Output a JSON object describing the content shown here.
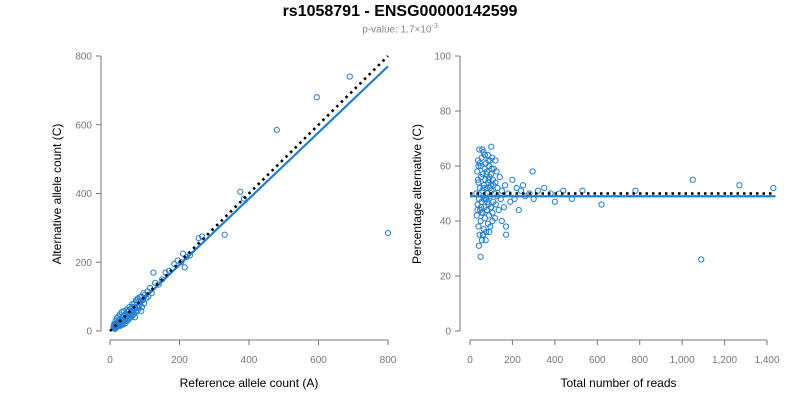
{
  "title": "rs1058791 - ENSG00000142599",
  "subtitle": {
    "prefix": "p-value: 1.7×10",
    "exponent": "-3"
  },
  "colors": {
    "points": "#1f7fd8",
    "fit_line": "#1f7fd8",
    "expected_line": "#000000",
    "axis": "#777777"
  },
  "chart_data": [
    {
      "type": "scatter",
      "xlabel": "Reference allele count (A)",
      "ylabel": "Alternative allele count (C)",
      "xlim": [
        0,
        800
      ],
      "ylim": [
        0,
        800
      ],
      "xticks": [
        0,
        200,
        400,
        600,
        800
      ],
      "xtick_labels": [
        "0",
        "200",
        "400",
        "600",
        "800"
      ],
      "yticks": [
        0,
        200,
        400,
        600,
        800
      ],
      "ytick_labels": [
        "0",
        "200",
        "400",
        "600",
        "800"
      ],
      "grid": false,
      "points": [
        [
          10,
          12
        ],
        [
          12,
          8
        ],
        [
          14,
          18
        ],
        [
          15,
          10
        ],
        [
          16,
          22
        ],
        [
          18,
          15
        ],
        [
          20,
          25
        ],
        [
          20,
          12
        ],
        [
          22,
          20
        ],
        [
          24,
          28
        ],
        [
          25,
          18
        ],
        [
          26,
          32
        ],
        [
          28,
          22
        ],
        [
          30,
          35
        ],
        [
          30,
          15
        ],
        [
          32,
          28
        ],
        [
          34,
          20
        ],
        [
          35,
          40
        ],
        [
          36,
          30
        ],
        [
          38,
          25
        ],
        [
          40,
          45
        ],
        [
          40,
          30
        ],
        [
          42,
          35
        ],
        [
          44,
          22
        ],
        [
          45,
          50
        ],
        [
          46,
          38
        ],
        [
          48,
          42
        ],
        [
          50,
          55
        ],
        [
          50,
          30
        ],
        [
          52,
          45
        ],
        [
          55,
          60
        ],
        [
          55,
          35
        ],
        [
          58,
          50
        ],
        [
          60,
          65
        ],
        [
          60,
          40
        ],
        [
          62,
          55
        ],
        [
          65,
          70
        ],
        [
          65,
          45
        ],
        [
          68,
          60
        ],
        [
          70,
          80
        ],
        [
          70,
          50
        ],
        [
          72,
          65
        ],
        [
          75,
          90
        ],
        [
          75,
          55
        ],
        [
          78,
          70
        ],
        [
          80,
          95
        ],
        [
          80,
          60
        ],
        [
          85,
          75
        ],
        [
          88,
          85
        ],
        [
          90,
          100
        ],
        [
          92,
          70
        ],
        [
          95,
          90
        ],
        [
          98,
          80
        ],
        [
          100,
          105
        ],
        [
          105,
          95
        ],
        [
          108,
          115
        ],
        [
          110,
          100
        ],
        [
          115,
          125
        ],
        [
          120,
          110
        ],
        [
          125,
          170
        ],
        [
          130,
          140
        ],
        [
          140,
          135
        ],
        [
          150,
          150
        ],
        [
          160,
          170
        ],
        [
          170,
          175
        ],
        [
          185,
          195
        ],
        [
          195,
          205
        ],
        [
          205,
          200
        ],
        [
          210,
          225
        ],
        [
          215,
          185
        ],
        [
          220,
          215
        ],
        [
          230,
          220
        ],
        [
          255,
          270
        ],
        [
          265,
          275
        ],
        [
          330,
          280
        ],
        [
          375,
          405
        ],
        [
          385,
          385
        ],
        [
          480,
          585
        ],
        [
          595,
          680
        ],
        [
          690,
          740
        ],
        [
          800,
          285
        ],
        [
          12,
          20
        ],
        [
          14,
          6
        ],
        [
          16,
          30
        ],
        [
          18,
          10
        ],
        [
          20,
          38
        ],
        [
          22,
          14
        ],
        [
          24,
          42
        ],
        [
          26,
          16
        ],
        [
          28,
          48
        ],
        [
          30,
          22
        ],
        [
          34,
          55
        ],
        [
          36,
          18
        ],
        [
          40,
          58
        ],
        [
          44,
          28
        ],
        [
          48,
          62
        ],
        [
          52,
          38
        ],
        [
          56,
          70
        ],
        [
          60,
          48
        ],
        [
          64,
          78
        ],
        [
          68,
          55
        ],
        [
          72,
          40
        ],
        [
          76,
          85
        ],
        [
          82,
          68
        ],
        [
          86,
          98
        ],
        [
          90,
          58
        ],
        [
          96,
          110
        ]
      ],
      "fit_line": [
        [
          0,
          0
        ],
        [
          800,
          770
        ]
      ],
      "expected_line": [
        [
          0,
          0
        ],
        [
          800,
          800
        ]
      ]
    },
    {
      "type": "scatter",
      "xlabel": "Total number of reads",
      "ylabel": "Percentage alternative (C)",
      "xlim": [
        0,
        1400
      ],
      "ylim": [
        0,
        100
      ],
      "xticks": [
        0,
        200,
        400,
        600,
        800,
        1000,
        1200,
        1400
      ],
      "xtick_labels": [
        "0",
        "200",
        "400",
        "600",
        "800",
        "1,000",
        "1,200",
        "1,400"
      ],
      "yticks": [
        0,
        20,
        40,
        60,
        80,
        100
      ],
      "ytick_labels": [
        "0",
        "20",
        "40",
        "60",
        "80",
        "100"
      ],
      "grid": false,
      "points": [
        [
          30,
          50
        ],
        [
          32,
          42
        ],
        [
          34,
          58
        ],
        [
          36,
          46
        ],
        [
          38,
          62
        ],
        [
          40,
          38
        ],
        [
          40,
          54
        ],
        [
          42,
          48
        ],
        [
          44,
          66
        ],
        [
          45,
          35
        ],
        [
          46,
          52
        ],
        [
          48,
          44
        ],
        [
          50,
          60
        ],
        [
          50,
          40
        ],
        [
          52,
          56
        ],
        [
          54,
          47
        ],
        [
          55,
          63
        ],
        [
          56,
          33
        ],
        [
          58,
          51
        ],
        [
          60,
          43
        ],
        [
          60,
          57
        ],
        [
          62,
          49
        ],
        [
          64,
          65
        ],
        [
          65,
          37
        ],
        [
          66,
          53
        ],
        [
          68,
          45
        ],
        [
          70,
          59
        ],
        [
          70,
          41
        ],
        [
          72,
          55
        ],
        [
          74,
          48
        ],
        [
          75,
          61
        ],
        [
          76,
          36
        ],
        [
          78,
          52
        ],
        [
          80,
          44
        ],
        [
          80,
          58
        ],
        [
          82,
          50
        ],
        [
          84,
          64
        ],
        [
          85,
          39
        ],
        [
          86,
          54
        ],
        [
          88,
          46
        ],
        [
          90,
          60
        ],
        [
          90,
          42
        ],
        [
          92,
          56
        ],
        [
          94,
          49
        ],
        [
          95,
          62
        ],
        [
          96,
          38
        ],
        [
          98,
          53
        ],
        [
          100,
          45
        ],
        [
          100,
          57
        ],
        [
          102,
          51
        ],
        [
          104,
          63
        ],
        [
          106,
          43
        ],
        [
          108,
          55
        ],
        [
          110,
          47
        ],
        [
          112,
          59
        ],
        [
          115,
          50
        ],
        [
          118,
          41
        ],
        [
          120,
          54
        ],
        [
          122,
          46
        ],
        [
          125,
          58
        ],
        [
          128,
          49
        ],
        [
          130,
          52
        ],
        [
          135,
          44
        ],
        [
          140,
          56
        ],
        [
          145,
          48
        ],
        [
          150,
          51
        ],
        [
          160,
          45
        ],
        [
          165,
          53
        ],
        [
          170,
          38
        ],
        [
          180,
          50
        ],
        [
          190,
          47
        ],
        [
          200,
          55
        ],
        [
          210,
          48
        ],
        [
          220,
          52
        ],
        [
          230,
          44
        ],
        [
          240,
          51
        ],
        [
          250,
          53
        ],
        [
          260,
          49
        ],
        [
          280,
          50
        ],
        [
          295,
          58
        ],
        [
          300,
          48
        ],
        [
          320,
          51
        ],
        [
          350,
          52
        ],
        [
          380,
          50
        ],
        [
          400,
          47
        ],
        [
          420,
          50
        ],
        [
          440,
          51
        ],
        [
          480,
          48
        ],
        [
          530,
          51
        ],
        [
          620,
          46
        ],
        [
          780,
          51
        ],
        [
          1050,
          55
        ],
        [
          1090,
          26
        ],
        [
          1270,
          53
        ],
        [
          1430,
          52
        ],
        [
          35,
          44
        ],
        [
          38,
          55
        ],
        [
          42,
          31
        ],
        [
          46,
          61
        ],
        [
          50,
          27
        ],
        [
          54,
          43
        ],
        [
          58,
          66
        ],
        [
          62,
          35
        ],
        [
          66,
          48
        ],
        [
          70,
          64
        ],
        [
          74,
          33
        ],
        [
          78,
          57
        ],
        [
          82,
          47
        ],
        [
          86,
          62
        ],
        [
          90,
          36
        ],
        [
          94,
          52
        ],
        [
          98,
          45
        ],
        [
          102,
          59
        ],
        [
          106,
          40
        ],
        [
          110,
          53
        ],
        [
          52,
          45
        ],
        [
          64,
          52
        ],
        [
          76,
          48
        ],
        [
          88,
          55
        ],
        [
          40,
          60
        ],
        [
          60,
          35
        ],
        [
          100,
          67
        ],
        [
          120,
          62
        ],
        [
          150,
          40
        ],
        [
          170,
          35
        ]
      ],
      "fit_line": [
        [
          0,
          49
        ],
        [
          1440,
          49
        ]
      ],
      "expected_line": [
        [
          0,
          50
        ],
        [
          1440,
          50
        ]
      ]
    }
  ]
}
